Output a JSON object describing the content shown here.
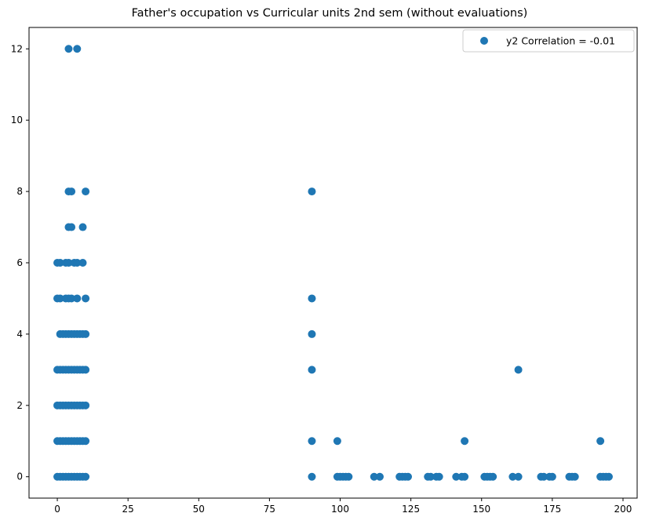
{
  "chart_data": {
    "type": "scatter",
    "title": "Father's occupation vs Curricular units 2nd sem (without evaluations)",
    "xlabel": "",
    "ylabel": "",
    "xlim": [
      -10,
      205
    ],
    "ylim": [
      -0.6,
      12.6
    ],
    "x_ticks": [
      0,
      25,
      50,
      75,
      100,
      125,
      150,
      175,
      200
    ],
    "y_ticks": [
      0,
      2,
      4,
      6,
      8,
      10,
      12
    ],
    "grid": false,
    "legend_position": "top-right",
    "color": "#1f77b4",
    "series": [
      {
        "name": "y2 Correlation = -0.01",
        "points": [
          [
            4,
            12
          ],
          [
            7,
            12
          ],
          [
            4,
            8
          ],
          [
            5,
            8
          ],
          [
            10,
            8
          ],
          [
            90,
            8
          ],
          [
            4,
            7
          ],
          [
            5,
            7
          ],
          [
            9,
            7
          ],
          [
            0,
            6
          ],
          [
            1,
            6
          ],
          [
            3,
            6
          ],
          [
            4,
            6
          ],
          [
            6,
            6
          ],
          [
            7,
            6
          ],
          [
            9,
            6
          ],
          [
            0,
            5
          ],
          [
            1,
            5
          ],
          [
            3,
            5
          ],
          [
            4,
            5
          ],
          [
            5,
            5
          ],
          [
            7,
            5
          ],
          [
            10,
            5
          ],
          [
            90,
            5
          ],
          [
            1,
            4
          ],
          [
            2,
            4
          ],
          [
            3,
            4
          ],
          [
            4,
            4
          ],
          [
            5,
            4
          ],
          [
            6,
            4
          ],
          [
            7,
            4
          ],
          [
            8,
            4
          ],
          [
            9,
            4
          ],
          [
            10,
            4
          ],
          [
            90,
            4
          ],
          [
            0,
            3
          ],
          [
            1,
            3
          ],
          [
            2,
            3
          ],
          [
            3,
            3
          ],
          [
            4,
            3
          ],
          [
            5,
            3
          ],
          [
            6,
            3
          ],
          [
            7,
            3
          ],
          [
            8,
            3
          ],
          [
            9,
            3
          ],
          [
            10,
            3
          ],
          [
            90,
            3
          ],
          [
            163,
            3
          ],
          [
            0,
            2
          ],
          [
            1,
            2
          ],
          [
            2,
            2
          ],
          [
            3,
            2
          ],
          [
            4,
            2
          ],
          [
            5,
            2
          ],
          [
            6,
            2
          ],
          [
            7,
            2
          ],
          [
            8,
            2
          ],
          [
            9,
            2
          ],
          [
            10,
            2
          ],
          [
            0,
            1
          ],
          [
            1,
            1
          ],
          [
            2,
            1
          ],
          [
            3,
            1
          ],
          [
            4,
            1
          ],
          [
            5,
            1
          ],
          [
            6,
            1
          ],
          [
            7,
            1
          ],
          [
            8,
            1
          ],
          [
            9,
            1
          ],
          [
            10,
            1
          ],
          [
            90,
            1
          ],
          [
            99,
            1
          ],
          [
            144,
            1
          ],
          [
            192,
            1
          ],
          [
            0,
            0
          ],
          [
            1,
            0
          ],
          [
            2,
            0
          ],
          [
            3,
            0
          ],
          [
            4,
            0
          ],
          [
            5,
            0
          ],
          [
            6,
            0
          ],
          [
            7,
            0
          ],
          [
            8,
            0
          ],
          [
            9,
            0
          ],
          [
            10,
            0
          ],
          [
            90,
            0
          ],
          [
            99,
            0
          ],
          [
            100,
            0
          ],
          [
            101,
            0
          ],
          [
            102,
            0
          ],
          [
            103,
            0
          ],
          [
            112,
            0
          ],
          [
            114,
            0
          ],
          [
            121,
            0
          ],
          [
            122,
            0
          ],
          [
            123,
            0
          ],
          [
            124,
            0
          ],
          [
            131,
            0
          ],
          [
            132,
            0
          ],
          [
            134,
            0
          ],
          [
            135,
            0
          ],
          [
            141,
            0
          ],
          [
            143,
            0
          ],
          [
            144,
            0
          ],
          [
            151,
            0
          ],
          [
            152,
            0
          ],
          [
            153,
            0
          ],
          [
            154,
            0
          ],
          [
            161,
            0
          ],
          [
            163,
            0
          ],
          [
            171,
            0
          ],
          [
            172,
            0
          ],
          [
            174,
            0
          ],
          [
            175,
            0
          ],
          [
            181,
            0
          ],
          [
            182,
            0
          ],
          [
            183,
            0
          ],
          [
            192,
            0
          ],
          [
            193,
            0
          ],
          [
            194,
            0
          ],
          [
            195,
            0
          ]
        ]
      }
    ]
  }
}
